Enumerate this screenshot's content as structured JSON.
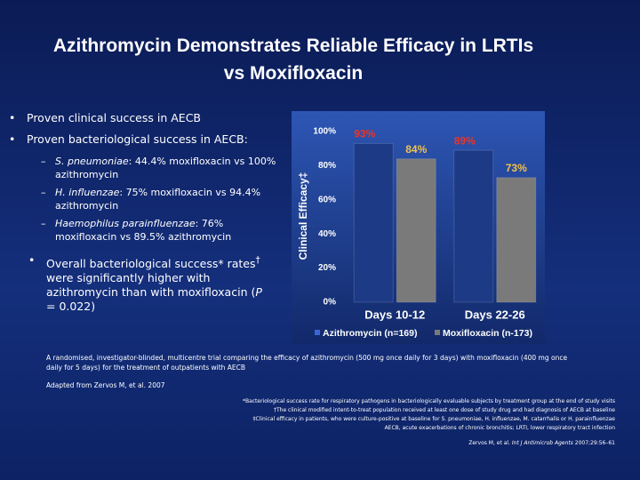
{
  "header": {
    "title": "Azithromycin Demonstrates Reliable Efficacy in LRTIs vs Moxifloxacin"
  },
  "bullets": {
    "b1": "Proven clinical success in AECB",
    "b2": "Proven bacteriological success in AECB:",
    "sub": [
      {
        "species": "S. pneumoniae",
        "text": ": 44.4% moxifloxacin vs 100% azithromycin"
      },
      {
        "species": "H. influenzae",
        "text": ": 75% moxifloxacin vs 94.4% azithromycin"
      },
      {
        "species": "Haemophilus parainfluenzae",
        "text": ": 76% moxifloxacin vs 89.5% azithromycin"
      }
    ],
    "b3": [
      "Overall bacteriological success* rates",
      "†",
      " were significantly higher with azithromycin than with moxifloxacin (",
      "P",
      " = 0.022)"
    ]
  },
  "notes": {
    "trial": "A randomised, investigator-blinded, multicentre trial comparing the efficacy of azithromycin (500 mg once daily for 3 days) with moxifloxacin (400 mg once daily for 5 days) for the treatment of outpatients with AECB",
    "adapted": "Adapted from Zervos M, et al. 2007",
    "footnotes": [
      "*Bacteriological success rate for respiratory pathogens in bacteriologically evaluable subjects by treatment group at the end of study visits",
      "†The clinical modified intent-to-treat population received at least one dose of study drug and had diagnosis of AECB at baseline",
      "‡Clinical efficacy in patients, who were culture-positive at baseline for S. pneumoniae, H. influenzae, M. catarrhalis or H. parainfluenzae",
      "AECB, acute exacerbations of chronic bronchitis; LRTI, lower respiratory tract infection"
    ],
    "citation": [
      "Zervos M, et al. ",
      "Int J Antimicrob Agents",
      " 2007;29:56–61"
    ]
  },
  "chart_data": {
    "type": "bar",
    "y_label": "Clinical Efficacy‡",
    "categories": [
      "Days 10-12",
      "Days 22-26"
    ],
    "series": [
      {
        "name": "Azithromycin (n=169)",
        "color": "#1c3a85",
        "label_color": "#e8352a",
        "values": [
          93,
          89
        ],
        "value_labels": [
          "93%",
          "89%"
        ]
      },
      {
        "name": "Moxifloxacin (n-173)",
        "color": "#7a7a7a",
        "label_color": "#f2c14a",
        "values": [
          84,
          73
        ],
        "value_labels": [
          "84%",
          "73%"
        ]
      }
    ],
    "ylim": [
      0,
      100
    ],
    "yticks": [
      {
        "value": 0,
        "label": "0%"
      },
      {
        "value": 20,
        "label": "20%"
      },
      {
        "value": 40,
        "label": "40%"
      },
      {
        "value": 60,
        "label": "60%"
      },
      {
        "value": 80,
        "label": "80%"
      },
      {
        "value": 100,
        "label": "100%"
      }
    ],
    "grid": false
  }
}
